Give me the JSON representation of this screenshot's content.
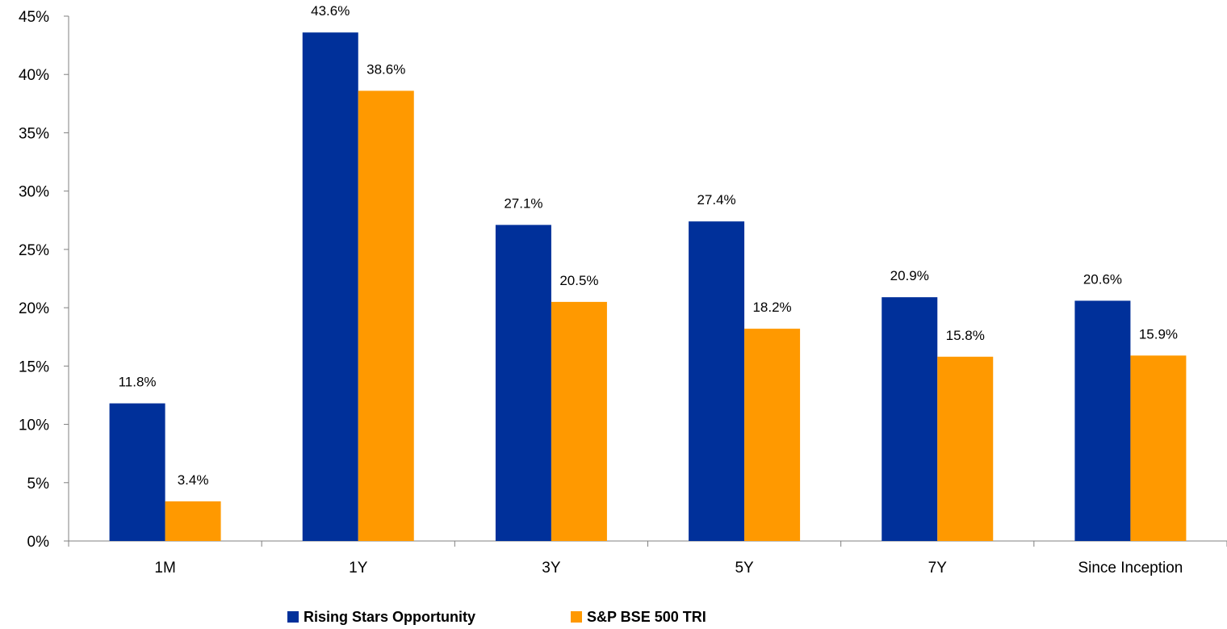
{
  "chart_data": {
    "type": "bar",
    "categories": [
      "1M",
      "1Y",
      "3Y",
      "5Y",
      "7Y",
      "Since Inception"
    ],
    "series": [
      {
        "name": "Rising Stars Opportunity",
        "values": [
          11.8,
          43.6,
          27.1,
          27.4,
          20.9,
          20.6
        ],
        "labels": [
          "11.8%",
          "43.6%",
          "27.1%",
          "27.4%",
          "20.9%",
          "20.6%"
        ],
        "color": "#00309A"
      },
      {
        "name": "S&P BSE 500 TRI",
        "values": [
          3.4,
          38.6,
          20.5,
          18.2,
          15.8,
          15.9
        ],
        "labels": [
          "3.4%",
          "38.6%",
          "20.5%",
          "18.2%",
          "15.8%",
          "15.9%"
        ],
        "color": "#FF9900"
      }
    ],
    "yticks": [
      "0%",
      "5%",
      "10%",
      "15%",
      "20%",
      "25%",
      "30%",
      "35%",
      "40%",
      "45%"
    ],
    "ylim": [
      0,
      45
    ],
    "grid": false,
    "legend_position": "bottom"
  }
}
